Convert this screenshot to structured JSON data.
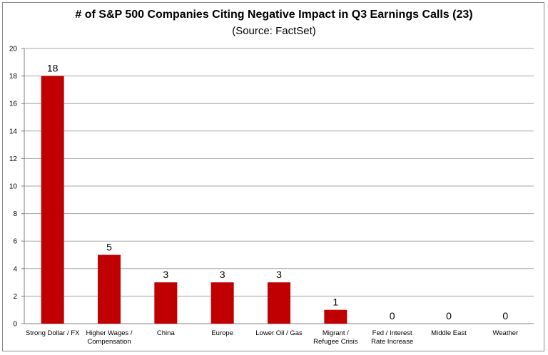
{
  "chart_data": {
    "type": "bar",
    "title": "# of S&P 500 Companies Citing Negative Impact in Q3 Earnings Calls (23)",
    "subtitle": "(Source: FactSet)",
    "categories": [
      [
        "Strong Dollar / FX"
      ],
      [
        "Higher Wages /",
        "Compensation"
      ],
      [
        "China"
      ],
      [
        "Europe"
      ],
      [
        "Lower Oil / Gas"
      ],
      [
        "Migrant /",
        "Refugee Crisis"
      ],
      [
        "Fed / Interest",
        "Rate Increase"
      ],
      [
        "Middle East"
      ],
      [
        "Weather"
      ]
    ],
    "values": [
      18,
      5,
      3,
      3,
      3,
      1,
      0,
      0,
      0
    ],
    "ylim": [
      0,
      20
    ],
    "yticks": [
      0,
      2,
      4,
      6,
      8,
      10,
      12,
      14,
      16,
      18,
      20
    ],
    "grid": true,
    "legend": "none",
    "colors": {
      "bar": "#c00000",
      "grid": "#a6a6a6",
      "axis": "#808080"
    }
  }
}
